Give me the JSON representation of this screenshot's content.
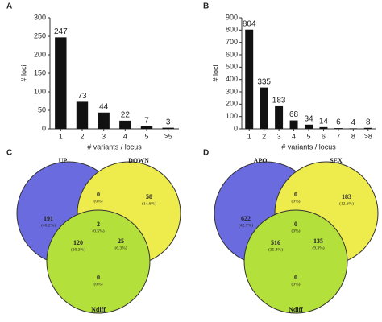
{
  "chart_data": [
    {
      "type": "bar",
      "panel": "A",
      "xlabel": "# variants / locus",
      "ylabel": "# loci",
      "categories": [
        "1",
        "2",
        "3",
        "4",
        "5",
        ">5"
      ],
      "values": [
        247,
        73,
        44,
        22,
        7,
        3
      ],
      "color": "#111111",
      "ylim": [
        0,
        300
      ],
      "yticks": [
        0,
        50,
        100,
        150,
        200,
        250,
        300
      ]
    },
    {
      "type": "bar",
      "panel": "B",
      "xlabel": "# variants / locus",
      "ylabel": "# loci",
      "categories": [
        "1",
        "2",
        "3",
        "4",
        "5",
        "6",
        "7",
        "8",
        ">8"
      ],
      "values": [
        804,
        335,
        183,
        68,
        34,
        14,
        6,
        4,
        8
      ],
      "color": "#111111",
      "ylim": [
        0,
        900
      ],
      "yticks": [
        0,
        100,
        200,
        300,
        400,
        500,
        600,
        700,
        800,
        900
      ]
    },
    {
      "type": "venn",
      "panel": "C",
      "sets": [
        {
          "name": "UP",
          "color": "#6b6be0"
        },
        {
          "name": "DOWN",
          "color": "#eeec4c"
        },
        {
          "name": "Ndiff",
          "color": "#b4e03c"
        }
      ],
      "values": [
        191,
        0,
        58,
        2,
        120,
        25,
        0
      ],
      "percent_labels": [
        "(48.2%)",
        "(0%)",
        "(14.6%)",
        "(0.5%)",
        "(30.3%)",
        "(6.3%)",
        "(0%)"
      ]
    },
    {
      "type": "venn",
      "panel": "D",
      "sets": [
        {
          "name": "APO",
          "color": "#6b6be0"
        },
        {
          "name": "SEX",
          "color": "#eeec4c"
        },
        {
          "name": "Ndiff",
          "color": "#b4e03c"
        }
      ],
      "values": [
        622,
        0,
        183,
        0,
        516,
        135,
        0
      ],
      "percent_labels": [
        "(42.7%)",
        "(0%)",
        "(12.6%)",
        "(0%)",
        "(35.4%)",
        "(9.3%)",
        "(0%)"
      ]
    }
  ]
}
